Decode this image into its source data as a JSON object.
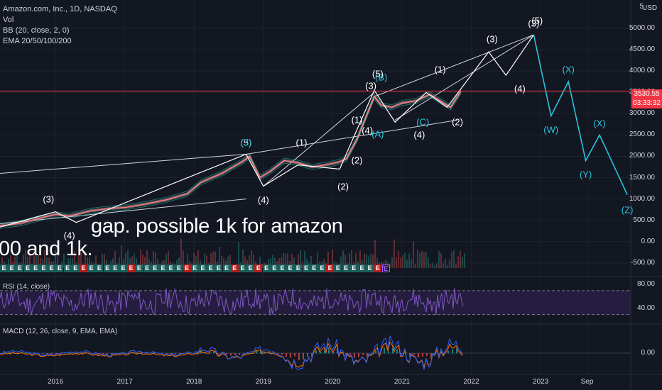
{
  "header": {
    "symbol": "Amazon.com, Inc., 1D, NASDAQ",
    "vol": "Vol",
    "bb": "BB (20, close, 2, 0)",
    "ema": "EMA 20/50/100/200"
  },
  "currency": "USD",
  "last_price": "3530.55",
  "countdown": "03:33:32",
  "annotations": {
    "line1": "gap. possible 1k for amazon",
    "line2": "00 and 1k."
  },
  "earnings_marks": [
    {
      "label": "E",
      "kind": "g"
    },
    {
      "label": "E",
      "kind": "g"
    },
    {
      "label": "E",
      "kind": "g"
    },
    {
      "label": "E",
      "kind": "g"
    },
    {
      "label": "E",
      "kind": "g"
    },
    {
      "label": "E",
      "kind": "g"
    },
    {
      "label": "E",
      "kind": "g"
    },
    {
      "label": "E",
      "kind": "g"
    },
    {
      "label": "E",
      "kind": "g"
    },
    {
      "label": "E",
      "kind": "g"
    },
    {
      "label": "E",
      "kind": "r"
    },
    {
      "label": "E",
      "kind": "g"
    },
    {
      "label": "E",
      "kind": "g"
    },
    {
      "label": "E",
      "kind": "g"
    },
    {
      "label": "E",
      "kind": "g"
    },
    {
      "label": "E",
      "kind": "g"
    },
    {
      "label": "E",
      "kind": "r"
    },
    {
      "label": "E",
      "kind": "g"
    },
    {
      "label": "E",
      "kind": "g"
    },
    {
      "label": "E",
      "kind": "g"
    },
    {
      "label": "E",
      "kind": "g"
    },
    {
      "label": "E",
      "kind": "g"
    },
    {
      "label": "E",
      "kind": "g"
    },
    {
      "label": "E",
      "kind": "r"
    },
    {
      "label": "E",
      "kind": "g"
    },
    {
      "label": "E",
      "kind": "g"
    },
    {
      "label": "E",
      "kind": "g"
    },
    {
      "label": "E",
      "kind": "g"
    },
    {
      "label": "E",
      "kind": "g"
    },
    {
      "label": "E",
      "kind": "r"
    },
    {
      "label": "E",
      "kind": "g"
    },
    {
      "label": "E",
      "kind": "g"
    },
    {
      "label": "E",
      "kind": "r"
    },
    {
      "label": "E",
      "kind": "g"
    },
    {
      "label": "E",
      "kind": "g"
    },
    {
      "label": "E",
      "kind": "g"
    },
    {
      "label": "E",
      "kind": "g"
    },
    {
      "label": "E",
      "kind": "g"
    },
    {
      "label": "E",
      "kind": "g"
    },
    {
      "label": "E",
      "kind": "g"
    },
    {
      "label": "E",
      "kind": "g"
    },
    {
      "label": "E",
      "kind": "r"
    },
    {
      "label": "E",
      "kind": "g"
    },
    {
      "label": "E",
      "kind": "g"
    },
    {
      "label": "E",
      "kind": "g"
    },
    {
      "label": "E",
      "kind": "g"
    },
    {
      "label": "E",
      "kind": "g"
    },
    {
      "label": "E",
      "kind": "r"
    },
    {
      "label": "E",
      "kind": "o"
    }
  ],
  "chart_data": {
    "type": "line",
    "price_axis": {
      "ticks": [
        5000,
        4500,
        4000,
        3500,
        3000,
        2500,
        2000,
        1500,
        1000,
        500,
        0,
        -500
      ],
      "tick_labels": [
        "5000.00",
        "4500.00",
        "4000.00",
        "3500.00",
        "3000.00",
        "2500.00",
        "2000.00",
        "1500.00",
        "1000.00",
        "500.00",
        "0.00",
        "-500.00"
      ],
      "top_label": "5",
      "ylim": [
        -620,
        5500
      ]
    },
    "time_axis": {
      "tick_labels": [
        "2016",
        "2017",
        "2018",
        "2019",
        "2020",
        "2021",
        "2022",
        "2023",
        "Sep"
      ],
      "tick_years": [
        2016,
        2017,
        2018,
        2019,
        2020,
        2021,
        2022,
        2023,
        2023.67
      ],
      "xlim": [
        2015.2,
        2024.3
      ]
    },
    "price_series": {
      "x": [
        2015.2,
        2015.5,
        2015.8,
        2016.0,
        2016.2,
        2016.5,
        2016.8,
        2017.0,
        2017.3,
        2017.6,
        2017.9,
        2018.1,
        2018.4,
        2018.7,
        2018.8,
        2018.95,
        2019.1,
        2019.3,
        2019.5,
        2019.7,
        2019.9,
        2020.1,
        2020.2,
        2020.35,
        2020.5,
        2020.6,
        2020.7,
        2020.85,
        2021.0,
        2021.2,
        2021.4,
        2021.55,
        2021.7,
        2021.85
      ],
      "close": [
        370,
        430,
        560,
        640,
        600,
        720,
        780,
        800,
        880,
        980,
        1120,
        1390,
        1600,
        1880,
        2000,
        1500,
        1650,
        1900,
        1850,
        1750,
        1800,
        1870,
        1950,
        2400,
        3000,
        3400,
        3200,
        3150,
        3250,
        3300,
        3450,
        3300,
        3150,
        3530
      ]
    },
    "elliott_path_white": {
      "x": [
        2015.2,
        2016.0,
        2016.3,
        2018.75,
        2019.0,
        2019.5,
        2020.1,
        2020.6,
        2020.9,
        2021.35,
        2021.65,
        2022.25,
        2022.5,
        2022.9
      ],
      "y": [
        340,
        700,
        450,
        2050,
        1300,
        1800,
        1700,
        3550,
        2800,
        3500,
        3150,
        4450,
        3900,
        4850
      ]
    },
    "elliott_path_cyan": {
      "x": [
        2022.9,
        2023.15,
        2023.4,
        2023.65,
        2023.85,
        2024.25
      ],
      "y": [
        4850,
        2950,
        3750,
        1900,
        2500,
        1100
      ]
    },
    "trendlines": [
      {
        "x": [
          2015.2,
          2018.75
        ],
        "y": [
          1600,
          2050
        ]
      },
      {
        "x": [
          2018.75,
          2021.8
        ],
        "y": [
          2050,
          2850
        ]
      },
      {
        "x": [
          2015.2,
          2018.75
        ],
        "y": [
          420,
          1000
        ]
      },
      {
        "x": [
          2019.0,
          2020.6
        ],
        "y": [
          1300,
          3500
        ]
      },
      {
        "x": [
          2020.6,
          2022.9
        ],
        "y": [
          3400,
          4850
        ]
      },
      {
        "x": [
          2020.9,
          2022.9
        ],
        "y": [
          2850,
          4850
        ]
      }
    ],
    "wave_labels": [
      {
        "text": "(3)",
        "x": 2015.9,
        "y": 1000,
        "color": "white"
      },
      {
        "text": "(4)",
        "x": 2016.2,
        "y": 140,
        "color": "white"
      },
      {
        "text": "(5)",
        "x": 2018.75,
        "y": 2330,
        "color": "white"
      },
      {
        "text": "(3)",
        "x": 2018.75,
        "y": 2330,
        "color": "cyan"
      },
      {
        "text": "(1)",
        "x": 2019.55,
        "y": 2330,
        "color": "white"
      },
      {
        "text": "(4)",
        "x": 2019.0,
        "y": 970,
        "color": "white"
      },
      {
        "text": "(2)",
        "x": 2020.15,
        "y": 1300,
        "color": "white"
      },
      {
        "text": "(2)",
        "x": 2020.35,
        "y": 1900,
        "color": "white"
      },
      {
        "text": "(1)",
        "x": 2020.35,
        "y": 2850,
        "color": "white"
      },
      {
        "text": "(A)",
        "x": 2020.65,
        "y": 2520,
        "color": "cyan"
      },
      {
        "text": "(4)",
        "x": 2020.5,
        "y": 2600,
        "color": "white"
      },
      {
        "text": "(3)",
        "x": 2020.55,
        "y": 3650,
        "color": "white"
      },
      {
        "text": "(B)",
        "x": 2020.7,
        "y": 3850,
        "color": "cyan"
      },
      {
        "text": "(5)",
        "x": 2020.65,
        "y": 3930,
        "color": "white"
      },
      {
        "text": "(4)",
        "x": 2021.25,
        "y": 2500,
        "color": "white"
      },
      {
        "text": "(C)",
        "x": 2021.3,
        "y": 2800,
        "color": "cyan"
      },
      {
        "text": "(1)",
        "x": 2021.55,
        "y": 4030,
        "color": "white"
      },
      {
        "text": "(2)",
        "x": 2021.8,
        "y": 2800,
        "color": "white"
      },
      {
        "text": "(3)",
        "x": 2022.3,
        "y": 4750,
        "color": "white"
      },
      {
        "text": "(4)",
        "x": 2022.7,
        "y": 3580,
        "color": "white"
      },
      {
        "text": "(5)",
        "x": 2022.95,
        "y": 5180,
        "color": "white"
      },
      {
        "text": "(3)",
        "x": 2022.9,
        "y": 5120,
        "color": "white"
      },
      {
        "text": "(X)",
        "x": 2023.4,
        "y": 4030,
        "color": "cyan"
      },
      {
        "text": "(W)",
        "x": 2023.15,
        "y": 2630,
        "color": "cyan"
      },
      {
        "text": "(X)",
        "x": 2023.85,
        "y": 2780,
        "color": "cyan"
      },
      {
        "text": "(Y)",
        "x": 2023.65,
        "y": 1570,
        "color": "cyan"
      },
      {
        "text": "(Z)",
        "x": 2024.25,
        "y": 750,
        "color": "cyan"
      }
    ],
    "rsi": {
      "title": "RSI (14, close)",
      "tick_labels": [
        "80.00",
        "40.00"
      ],
      "ticks": [
        80,
        40
      ],
      "band": [
        30,
        70
      ],
      "ylim": [
        20,
        90
      ]
    },
    "macd": {
      "title": "MACD (12, 26, close, 9, EMA, EMA)",
      "tick_labels": [
        "0.00"
      ],
      "ticks": [
        0
      ]
    },
    "colors": {
      "background": "#131722",
      "price_line": "#ff7d7d",
      "ema_line": "#26a69a",
      "white_path": "#ffffff",
      "cyan_path": "#26c6da",
      "rsi_line": "#7e57c2",
      "rsi_band": "#2a1f47",
      "macd_line": "#2962ff",
      "signal_line": "#ff6d00",
      "last_price": "#f23645"
    }
  }
}
